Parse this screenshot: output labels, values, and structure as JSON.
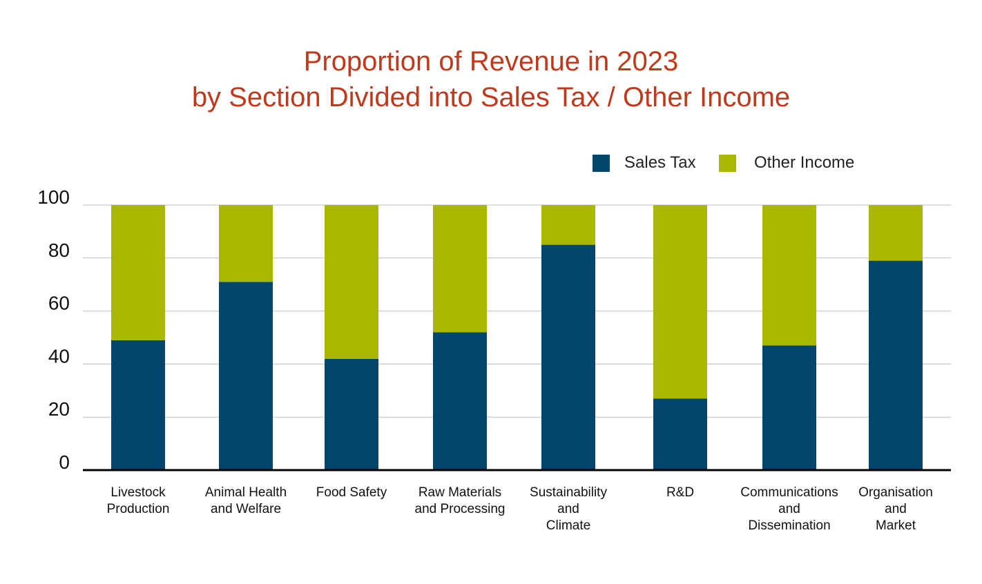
{
  "chart_data": {
    "type": "bar",
    "stacked": true,
    "title": [
      "Proportion of Revenue in 2023",
      "by Section Divided into Sales Tax / Other Income"
    ],
    "categories": [
      [
        "Livestock",
        "Production"
      ],
      [
        "Animal Health",
        "and Welfare"
      ],
      [
        "Food Safety"
      ],
      [
        "Raw Materials",
        "and Processing"
      ],
      [
        "Sustainability",
        "and",
        "Climate"
      ],
      [
        "R&D"
      ],
      [
        "Communications",
        "and",
        "Dissemination"
      ],
      [
        "Organisation",
        "and",
        "Market"
      ]
    ],
    "series": [
      {
        "name": "Sales Tax",
        "color": "#02466d",
        "values": [
          49,
          71,
          42,
          52,
          85,
          27,
          47,
          79
        ]
      },
      {
        "name": "Other Income",
        "color": "#a9b700",
        "values": [
          51,
          29,
          58,
          48,
          15,
          73,
          53,
          21
        ]
      }
    ],
    "ylim": [
      0,
      100
    ],
    "yticks": [
      "0",
      "20",
      "40",
      "60",
      "80",
      "100"
    ],
    "grid": true,
    "legend_position": "top-right"
  }
}
